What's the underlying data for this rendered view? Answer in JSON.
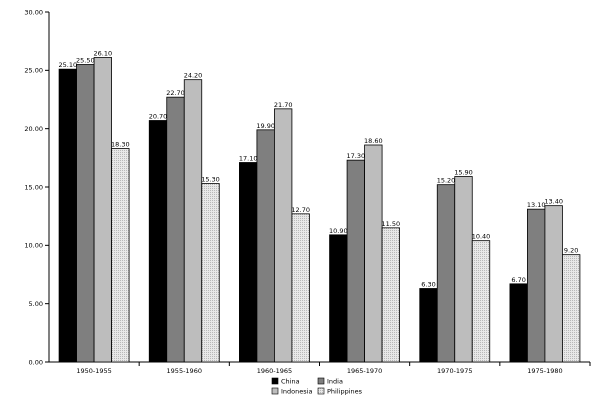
{
  "chart_data": {
    "type": "bar",
    "categories": [
      "1950-1955",
      "1955-1960",
      "1960-1965",
      "1965-1970",
      "1970-1975",
      "1975-1980"
    ],
    "series": [
      {
        "name": "China",
        "color": "#000000",
        "values": [
          25.1,
          20.7,
          17.1,
          10.9,
          6.3,
          6.7
        ],
        "labels": [
          "25.10",
          "20.70",
          "17.10",
          "10.90",
          "6.30",
          "6.70"
        ]
      },
      {
        "name": "India",
        "color": "#7f7f7f",
        "values": [
          25.5,
          22.7,
          19.9,
          17.3,
          15.2,
          13.1
        ],
        "labels": [
          "25.50",
          "22.70",
          "19.90",
          "17.30",
          "15.20",
          "13.10"
        ]
      },
      {
        "name": "Indonesia",
        "color": "#bdbdbd",
        "values": [
          26.1,
          24.2,
          21.7,
          18.6,
          15.9,
          13.4
        ],
        "labels": [
          "26.10",
          "24.20",
          "21.70",
          "18.60",
          "15.90",
          "13.40"
        ]
      },
      {
        "name": "Philippines",
        "color": "#e3e3e3",
        "values": [
          18.3,
          15.3,
          12.7,
          11.5,
          10.4,
          9.2
        ],
        "labels": [
          "18.30",
          "15.30",
          "12.70",
          "11.50",
          "10.40",
          "9.20"
        ]
      }
    ],
    "y_ticks": [
      "0.00",
      "5.00",
      "10.00",
      "15.00",
      "20.00",
      "25.00",
      "30.00"
    ],
    "ylim": [
      0,
      30
    ],
    "grid": false,
    "legend": "bottom-center",
    "title": "",
    "xlabel": "",
    "ylabel": ""
  }
}
